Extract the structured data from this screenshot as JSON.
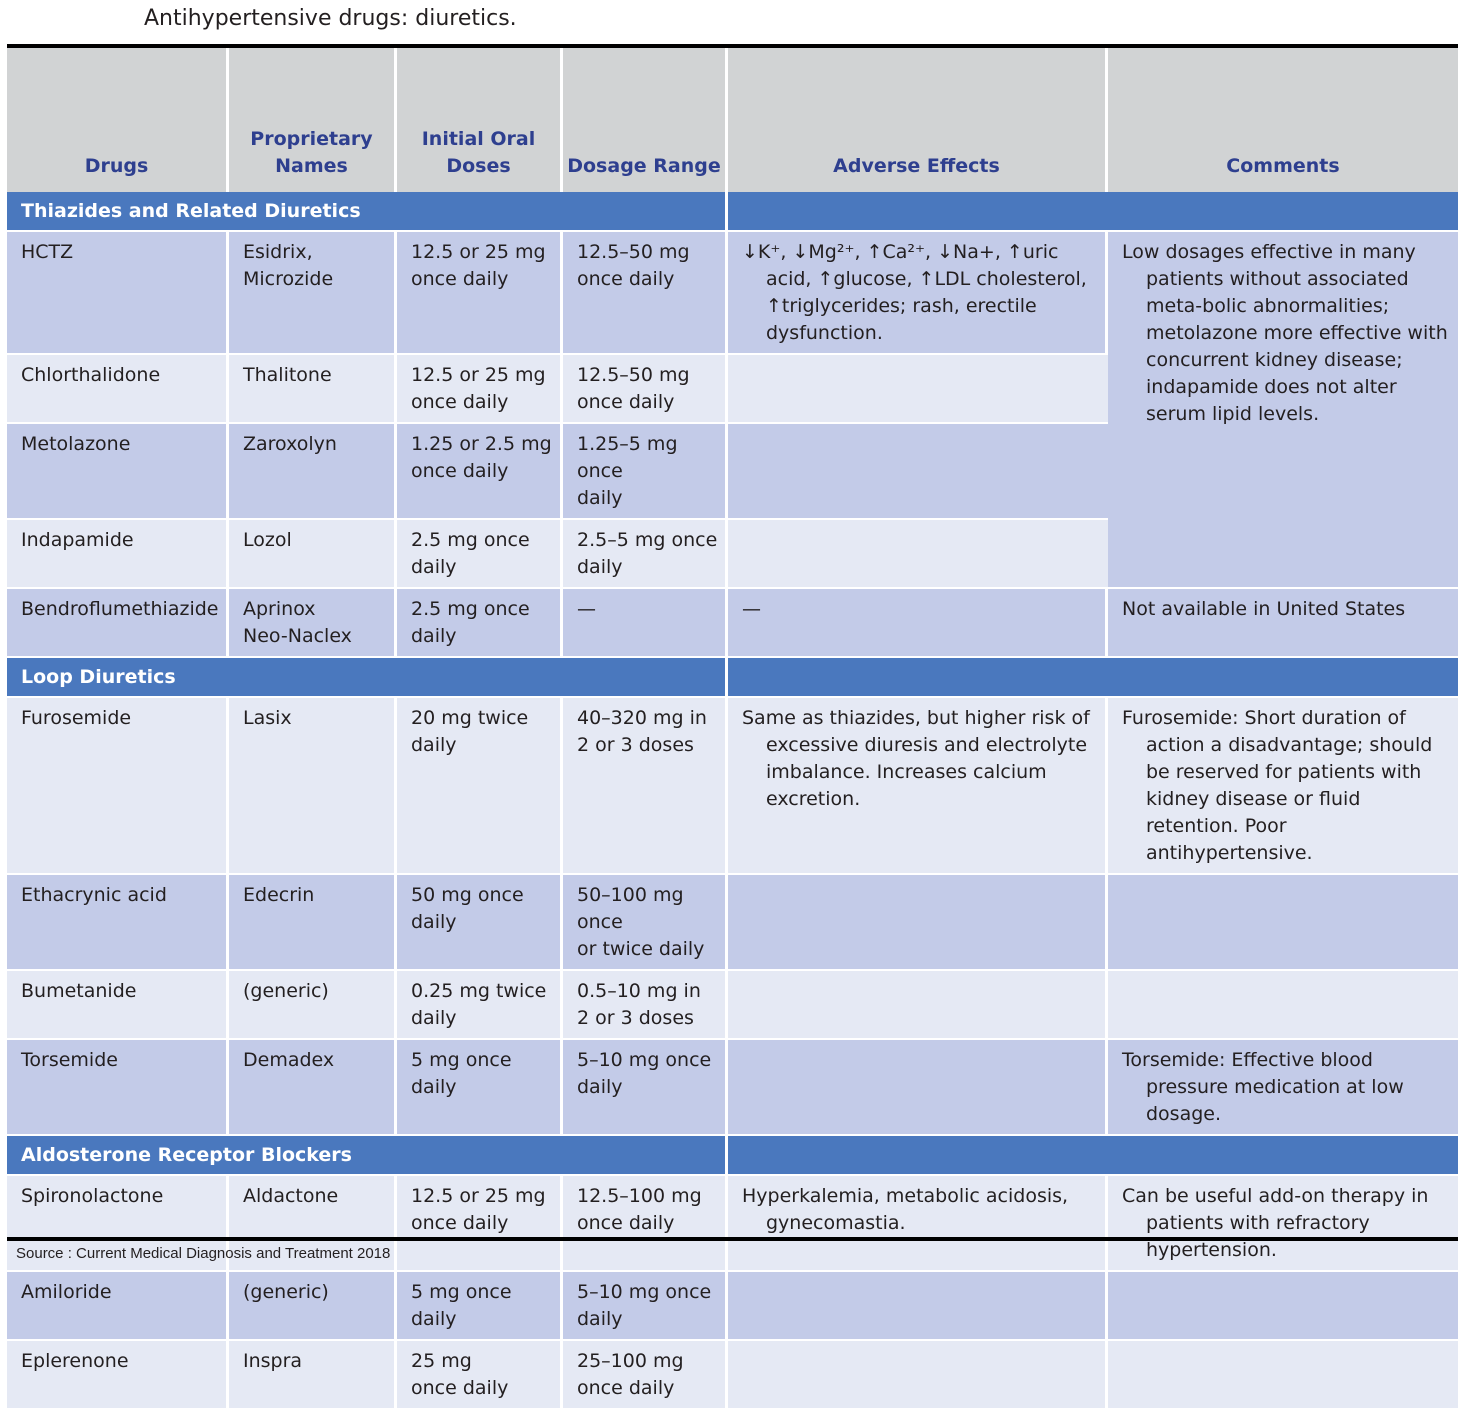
{
  "title": "Antihypertensive drugs: diuretics.",
  "source": "Source : Current Medical Diagnosis and Treatment 2018",
  "colors": {
    "header_bg": "#d1d3d4",
    "header_text": "#2e3f8f",
    "section_bg": "#4a78be",
    "row_dark": "#c3cbe8",
    "row_light": "#e5e9f4"
  },
  "headers": {
    "drugs": "Drugs",
    "proprietary": "Proprietary\nNames",
    "initial": "Initial Oral\nDoses",
    "range": "Dosage Range",
    "adverse": "Adverse Effects",
    "comments": "Comments"
  },
  "sections": {
    "thiazides": {
      "name": "Thiazides and Related Diuretics",
      "rows": [
        {
          "drug": "HCTZ",
          "names": "Esidrix,\n   Microzide",
          "initial": "12.5 or 25 mg\n   once daily",
          "range": "12.5–50 mg\n   once daily",
          "adverse": "↓K⁺, ↓Mg²⁺, ↑Ca²⁺, ↓Na+, ↑uric acid, ↑glucose, ↑LDL cholesterol, ↑triglycerides; rash, erectile dysfunction."
        },
        {
          "drug": "Chlorthalidone",
          "names": "Thalitone",
          "initial": "12.5 or 25 mg\n   once daily",
          "range": "12.5–50 mg\n   once daily"
        },
        {
          "drug": "Metolazone",
          "names": "Zaroxolyn",
          "initial": "1.25 or 2.5 mg\n   once daily",
          "range": "1.25–5 mg once\n   daily"
        },
        {
          "drug": "Indapamide",
          "names": "Lozol",
          "initial": "2.5 mg once\n   daily",
          "range": "2.5–5 mg once\n   daily"
        },
        {
          "drug": "Bendroflumethiazide",
          "names": "Aprinox\nNeo-Naclex",
          "initial": "2.5 mg once\n   daily",
          "range": "—",
          "adverse": "—",
          "comment": "Not available in United States"
        }
      ],
      "comment": "Low dosages effective in many patients without associated meta-bolic abnormalities; metolazone more effective with concurrent kidney disease; indapamide does not alter serum lipid levels."
    },
    "loop": {
      "name": "Loop Diuretics",
      "rows": [
        {
          "drug": "Furosemide",
          "names": "Lasix",
          "initial": "20 mg twice\n   daily",
          "range": "40–320 mg in\n   2 or 3 doses",
          "adverse": "Same as thiazides, but higher risk of excessive diuresis and electrolyte imbalance. Increases calcium excretion.",
          "comment": "Furosemide: Short duration of action a disadvantage; should be reserved for patients with kidney disease or fluid retention. Poor antihypertensive."
        },
        {
          "drug": "Ethacrynic acid",
          "names": "Edecrin",
          "initial": "50 mg once daily",
          "range": "50–100 mg once\n   or twice daily"
        },
        {
          "drug": "Bumetanide",
          "names": "(generic)",
          "initial": "0.25 mg twice\n   daily",
          "range": "0.5–10 mg in\n   2 or 3 doses"
        },
        {
          "drug": "Torsemide",
          "names": "Demadex",
          "initial": "5 mg once daily",
          "range": "5–10 mg once\n   daily",
          "comment": "Torsemide: Effective blood pressure medication at low dosage."
        }
      ]
    },
    "aldosterone": {
      "name": "Aldosterone Receptor Blockers",
      "rows": [
        {
          "drug": "Spironolactone",
          "names": "Aldactone",
          "initial": "12.5 or 25 mg\n   once daily",
          "range": "12.5–100 mg\n   once daily",
          "adverse": "Hyperkalemia, metabolic acidosis, gynecomastia.",
          "comment": "Can be useful add-on therapy in patients with refractory hypertension."
        },
        {
          "drug": "Amiloride",
          "names": "(generic)",
          "initial": "5 mg once daily",
          "range": "5–10 mg once\n   daily"
        },
        {
          "drug": "Eplerenone",
          "names": "Inspra",
          "initial": "25 mg\n   once daily",
          "range": "25–100 mg\n   once daily"
        }
      ]
    }
  }
}
